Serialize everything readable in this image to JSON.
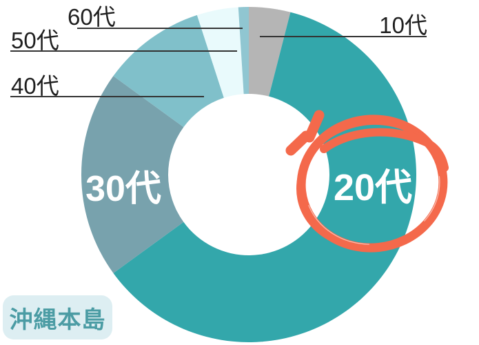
{
  "chart_data": {
    "type": "pie",
    "subtype": "donut",
    "title": "",
    "categories": [
      "10代",
      "20代",
      "30代",
      "40代",
      "50代",
      "60代"
    ],
    "values": [
      4,
      61,
      20,
      10,
      4,
      1
    ],
    "unit": "%",
    "colors": [
      "#b5b5b5",
      "#33a7ab",
      "#78a2ad",
      "#80c0ca",
      "#e9fafc",
      "#90c6d1"
    ],
    "start_angle": "top",
    "direction": "clockwise",
    "legend_position": "none",
    "inside_labels": [
      "20代",
      "30代"
    ],
    "callout_labels": [
      "10代",
      "40代",
      "50代",
      "60代"
    ],
    "inside_label_color": "#ffffff",
    "callout_label_color": "#1f1f1f",
    "annotation": {
      "type": "hand-drawn-circle-with-emphasis-dashes",
      "target": "20代",
      "color": "#f4694b"
    }
  },
  "badge": {
    "label": "沖縄本島",
    "bg_color": "#ddeef2",
    "text_color": "#4b9ca4"
  }
}
